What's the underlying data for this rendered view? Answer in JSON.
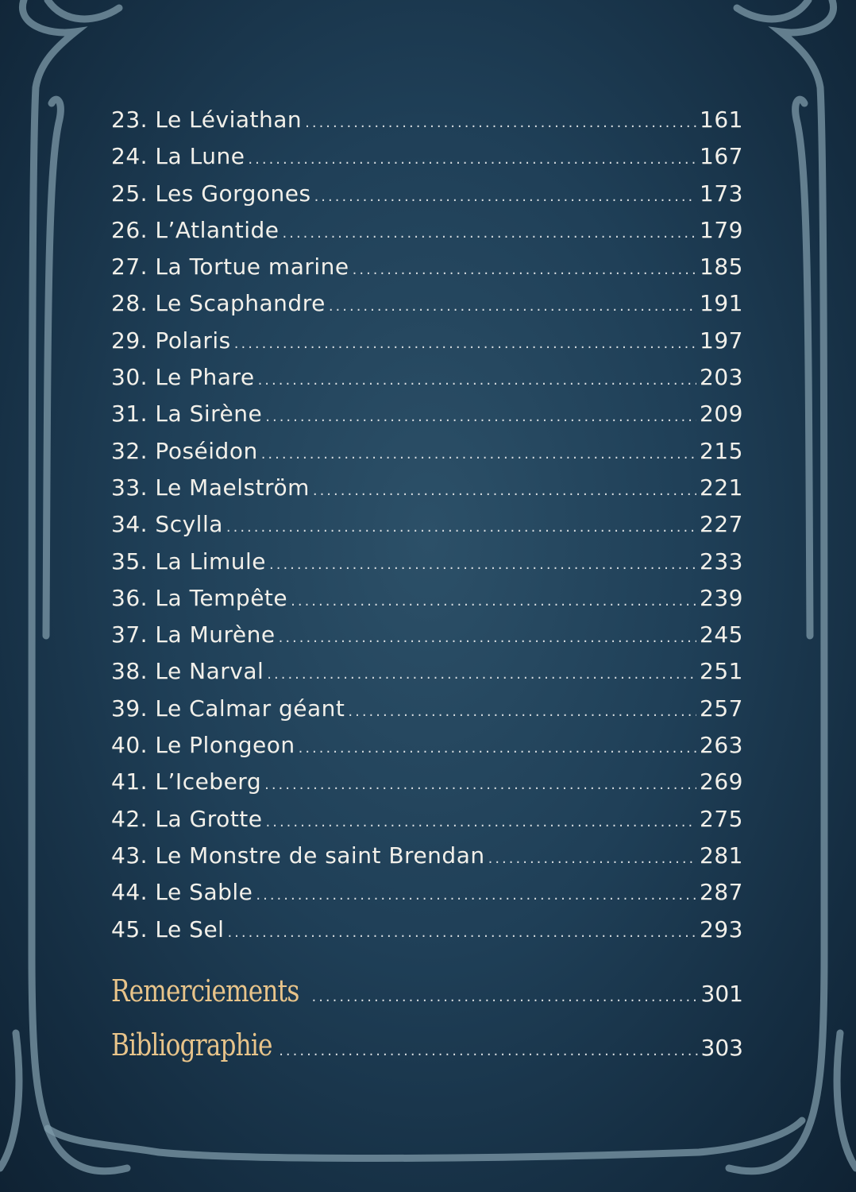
{
  "entries": [
    {
      "title": "23. Le Léviathan",
      "page": "161"
    },
    {
      "title": "24. La Lune",
      "page": "167"
    },
    {
      "title": "25. Les Gorgones",
      "page": "173"
    },
    {
      "title": "26. L’Atlantide",
      "page": "179"
    },
    {
      "title": "27. La Tortue marine",
      "page": "185"
    },
    {
      "title": "28. Le Scaphandre",
      "page": "191"
    },
    {
      "title": "29. Polaris",
      "page": "197"
    },
    {
      "title": "30. Le Phare",
      "page": "203"
    },
    {
      "title": "31. La Sirène",
      "page": "209"
    },
    {
      "title": "32. Poséidon",
      "page": "215"
    },
    {
      "title": "33. Le Maelström",
      "page": "221"
    },
    {
      "title": "34. Scylla",
      "page": "227"
    },
    {
      "title": "35. La Limule",
      "page": "233"
    },
    {
      "title": "36. La Tempête",
      "page": "239"
    },
    {
      "title": "37. La Murène",
      "page": "245"
    },
    {
      "title": "38. Le Narval",
      "page": "251"
    },
    {
      "title": "39. Le Calmar géant",
      "page": "257"
    },
    {
      "title": "40. Le Plongeon",
      "page": "263"
    },
    {
      "title": "41. L’Iceberg",
      "page": "269"
    },
    {
      "title": "42. La Grotte",
      "page": "275"
    },
    {
      "title": "43. Le Monstre de saint Brendan",
      "page": "281"
    },
    {
      "title": "44. Le Sable",
      "page": "287"
    },
    {
      "title": "45. Le Sel",
      "page": "293"
    }
  ],
  "extras": [
    {
      "title": "Remerciements",
      "page": "301"
    },
    {
      "title": "Bibliographie",
      "page": "303"
    }
  ],
  "colors": {
    "background": "#1f3f57",
    "text": "#f2f0ea",
    "section_heading": "#e8c48a",
    "ornament": "#7d9aa8"
  }
}
